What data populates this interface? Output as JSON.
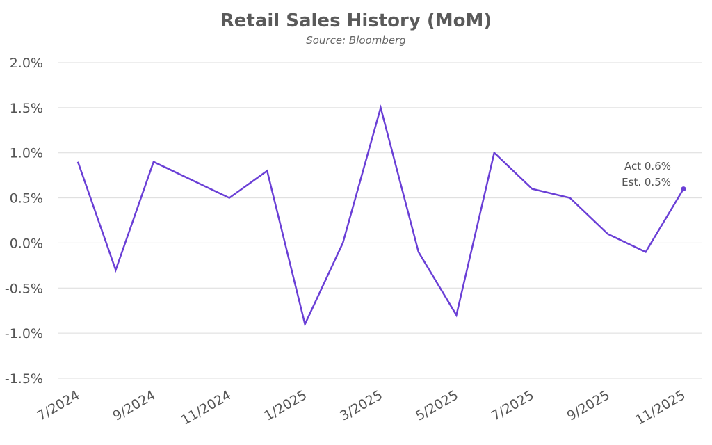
{
  "chart_data": {
    "type": "line",
    "title": "Retail Sales History (MoM)",
    "subtitle": "Source: Bloomberg",
    "xlabel": "",
    "ylabel": "",
    "ylim": [
      -1.5,
      2.0
    ],
    "y_ticks": [
      "2.0%",
      "1.5%",
      "1.0%",
      "0.5%",
      "0.0%",
      "-0.5%",
      "-1.0%",
      "-1.5%"
    ],
    "y_tick_values": [
      2.0,
      1.5,
      1.0,
      0.5,
      0.0,
      -0.5,
      -1.0,
      -1.5
    ],
    "x_tick_labels": [
      "7/2024",
      "9/2024",
      "11/2024",
      "1/2025",
      "3/2025",
      "5/2025",
      "7/2025",
      "9/2025",
      "11/2025"
    ],
    "x": [
      "7/2024",
      "8/2024",
      "9/2024",
      "10/2024",
      "11/2024",
      "12/2024",
      "1/2025",
      "2/2025",
      "3/2025",
      "4/2025",
      "5/2025",
      "6/2025",
      "7/2025",
      "8/2025",
      "9/2025",
      "10/2025",
      "11/2025"
    ],
    "series": [
      {
        "values": [
          0.9,
          -0.3,
          0.9,
          0.7,
          0.5,
          0.8,
          -0.9,
          0.0,
          1.5,
          -0.1,
          -0.8,
          1.0,
          0.6,
          0.5,
          0.1,
          -0.1,
          0.6
        ],
        "color": "#6a3fd6"
      }
    ],
    "annotations": [
      {
        "line1": "Act 0.6%",
        "line2": "Est. 0.5%"
      }
    ],
    "grid": true,
    "legend": "none"
  }
}
